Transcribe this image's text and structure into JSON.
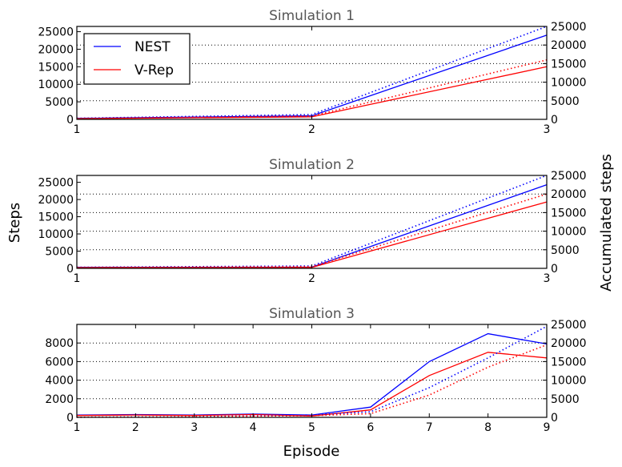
{
  "figure": {
    "ylabel_left": "Steps",
    "ylabel_right": "Accumulated steps",
    "xlabel": "Episode"
  },
  "legend": [
    {
      "label": "NEST",
      "color": "#0000ff"
    },
    {
      "label": "V-Rep",
      "color": "#ff0000"
    }
  ],
  "chart_data": [
    {
      "type": "line",
      "title": "Simulation 1",
      "x": [
        1,
        2,
        3
      ],
      "xticks": [
        1,
        2,
        3
      ],
      "ylim": [
        0,
        26500
      ],
      "yticks": [
        0,
        5000,
        10000,
        15000,
        20000,
        25000
      ],
      "y2lim": [
        0,
        25000
      ],
      "y2ticks": [
        0,
        5000,
        10000,
        15000,
        20000,
        25000
      ],
      "legend_position": "upper-left",
      "series": [
        {
          "name": "NEST",
          "color": "#0000ff",
          "style": "solid",
          "axis": "left",
          "values": [
            300,
            1000,
            24000
          ]
        },
        {
          "name": "V-Rep",
          "color": "#ff0000",
          "style": "solid",
          "axis": "left",
          "values": [
            200,
            700,
            15000
          ]
        },
        {
          "color": "#0000ff",
          "style": "dotted",
          "axis": "right",
          "values": [
            300,
            1300,
            25000
          ]
        },
        {
          "color": "#ff0000",
          "style": "dotted",
          "axis": "right",
          "values": [
            200,
            900,
            16000
          ]
        }
      ]
    },
    {
      "type": "line",
      "title": "Simulation 2",
      "x": [
        1,
        2,
        3
      ],
      "xticks": [
        1,
        2,
        3
      ],
      "ylim": [
        0,
        27000
      ],
      "yticks": [
        0,
        5000,
        10000,
        15000,
        20000,
        25000
      ],
      "y2lim": [
        0,
        25000
      ],
      "y2ticks": [
        0,
        5000,
        10000,
        15000,
        20000,
        25000
      ],
      "series": [
        {
          "name": "NEST",
          "color": "#0000ff",
          "style": "solid",
          "axis": "left",
          "values": [
            300,
            350,
            24300
          ]
        },
        {
          "name": "V-Rep",
          "color": "#ff0000",
          "style": "solid",
          "axis": "left",
          "values": [
            200,
            250,
            19300
          ]
        },
        {
          "color": "#0000ff",
          "style": "dotted",
          "axis": "right",
          "values": [
            300,
            650,
            25000
          ]
        },
        {
          "color": "#ff0000",
          "style": "dotted",
          "axis": "right",
          "values": [
            200,
            450,
            20000
          ]
        }
      ]
    },
    {
      "type": "line",
      "title": "Simulation 3",
      "x": [
        1,
        2,
        3,
        4,
        5,
        6,
        7,
        8,
        9
      ],
      "xticks": [
        1,
        2,
        3,
        4,
        5,
        6,
        7,
        8,
        9
      ],
      "ylim": [
        0,
        10000
      ],
      "yticks": [
        0,
        2000,
        4000,
        6000,
        8000
      ],
      "y2lim": [
        0,
        25000
      ],
      "y2ticks": [
        0,
        5000,
        10000,
        15000,
        20000,
        25000
      ],
      "series": [
        {
          "name": "NEST",
          "color": "#0000ff",
          "style": "solid",
          "axis": "left",
          "values": [
            250,
            300,
            250,
            350,
            250,
            1100,
            6000,
            9000,
            7900
          ]
        },
        {
          "name": "V-Rep",
          "color": "#ff0000",
          "style": "solid",
          "axis": "left",
          "values": [
            200,
            250,
            200,
            300,
            150,
            800,
            4500,
            7000,
            6400
          ]
        },
        {
          "color": "#0000ff",
          "style": "dotted",
          "axis": "right",
          "values": [
            50,
            100,
            200,
            400,
            600,
            1500,
            8000,
            16000,
            24500
          ]
        },
        {
          "color": "#ff0000",
          "style": "dotted",
          "axis": "right",
          "values": [
            50,
            100,
            150,
            300,
            450,
            1000,
            6000,
            13500,
            19500
          ]
        }
      ]
    }
  ]
}
